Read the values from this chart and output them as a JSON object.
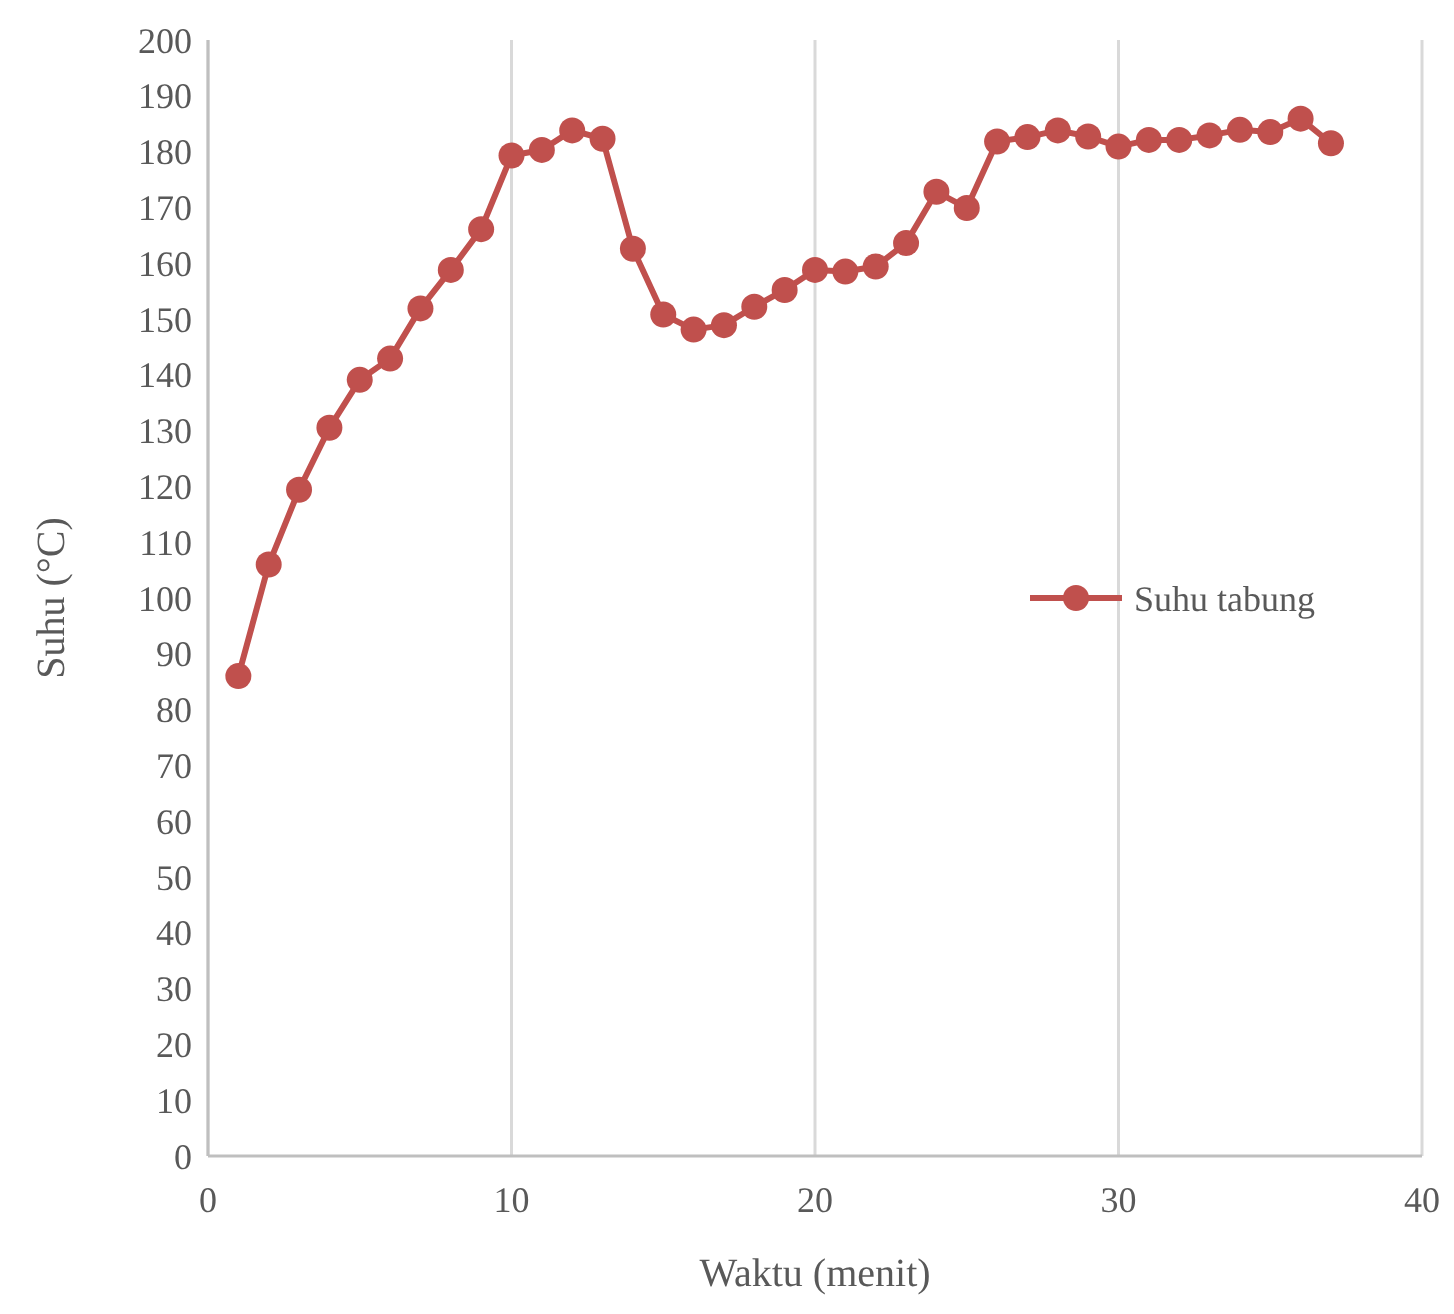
{
  "chart_data": {
    "type": "line",
    "xlabel": "Waktu (menit)",
    "ylabel": "Suhu (°C)",
    "x": [
      1,
      2,
      3,
      4,
      5,
      6,
      7,
      8,
      9,
      10,
      11,
      12,
      13,
      14,
      15,
      16,
      17,
      18,
      19,
      20,
      21,
      22,
      23,
      24,
      25,
      26,
      27,
      28,
      29,
      30,
      31,
      32,
      33,
      34,
      35,
      36,
      37
    ],
    "series": [
      {
        "name": "Suhu tabung",
        "color": "#c0504d",
        "values": [
          86,
          106,
          119.4,
          130.5,
          139.1,
          142.9,
          151.9,
          158.8,
          166.1,
          179.3,
          180.3,
          183.8,
          182.3,
          162.6,
          150.8,
          148.1,
          148.9,
          152.2,
          155.2,
          158.8,
          158.5,
          159.4,
          163.6,
          172.8,
          169.9,
          181.8,
          182.6,
          183.8,
          182.7,
          180.9,
          182.1,
          182.1,
          182.9,
          183.9,
          183.5,
          185.9,
          181.5
        ]
      }
    ],
    "xlim": [
      0,
      40
    ],
    "xticks": [
      0,
      10,
      20,
      30,
      40
    ],
    "ylim": [
      0,
      200
    ],
    "yticks": [
      0,
      10,
      20,
      30,
      40,
      50,
      60,
      70,
      80,
      90,
      100,
      110,
      120,
      130,
      140,
      150,
      160,
      170,
      180,
      190,
      200
    ],
    "grid": "x",
    "legend": "right",
    "marker": "circle",
    "line_style": "solid"
  }
}
